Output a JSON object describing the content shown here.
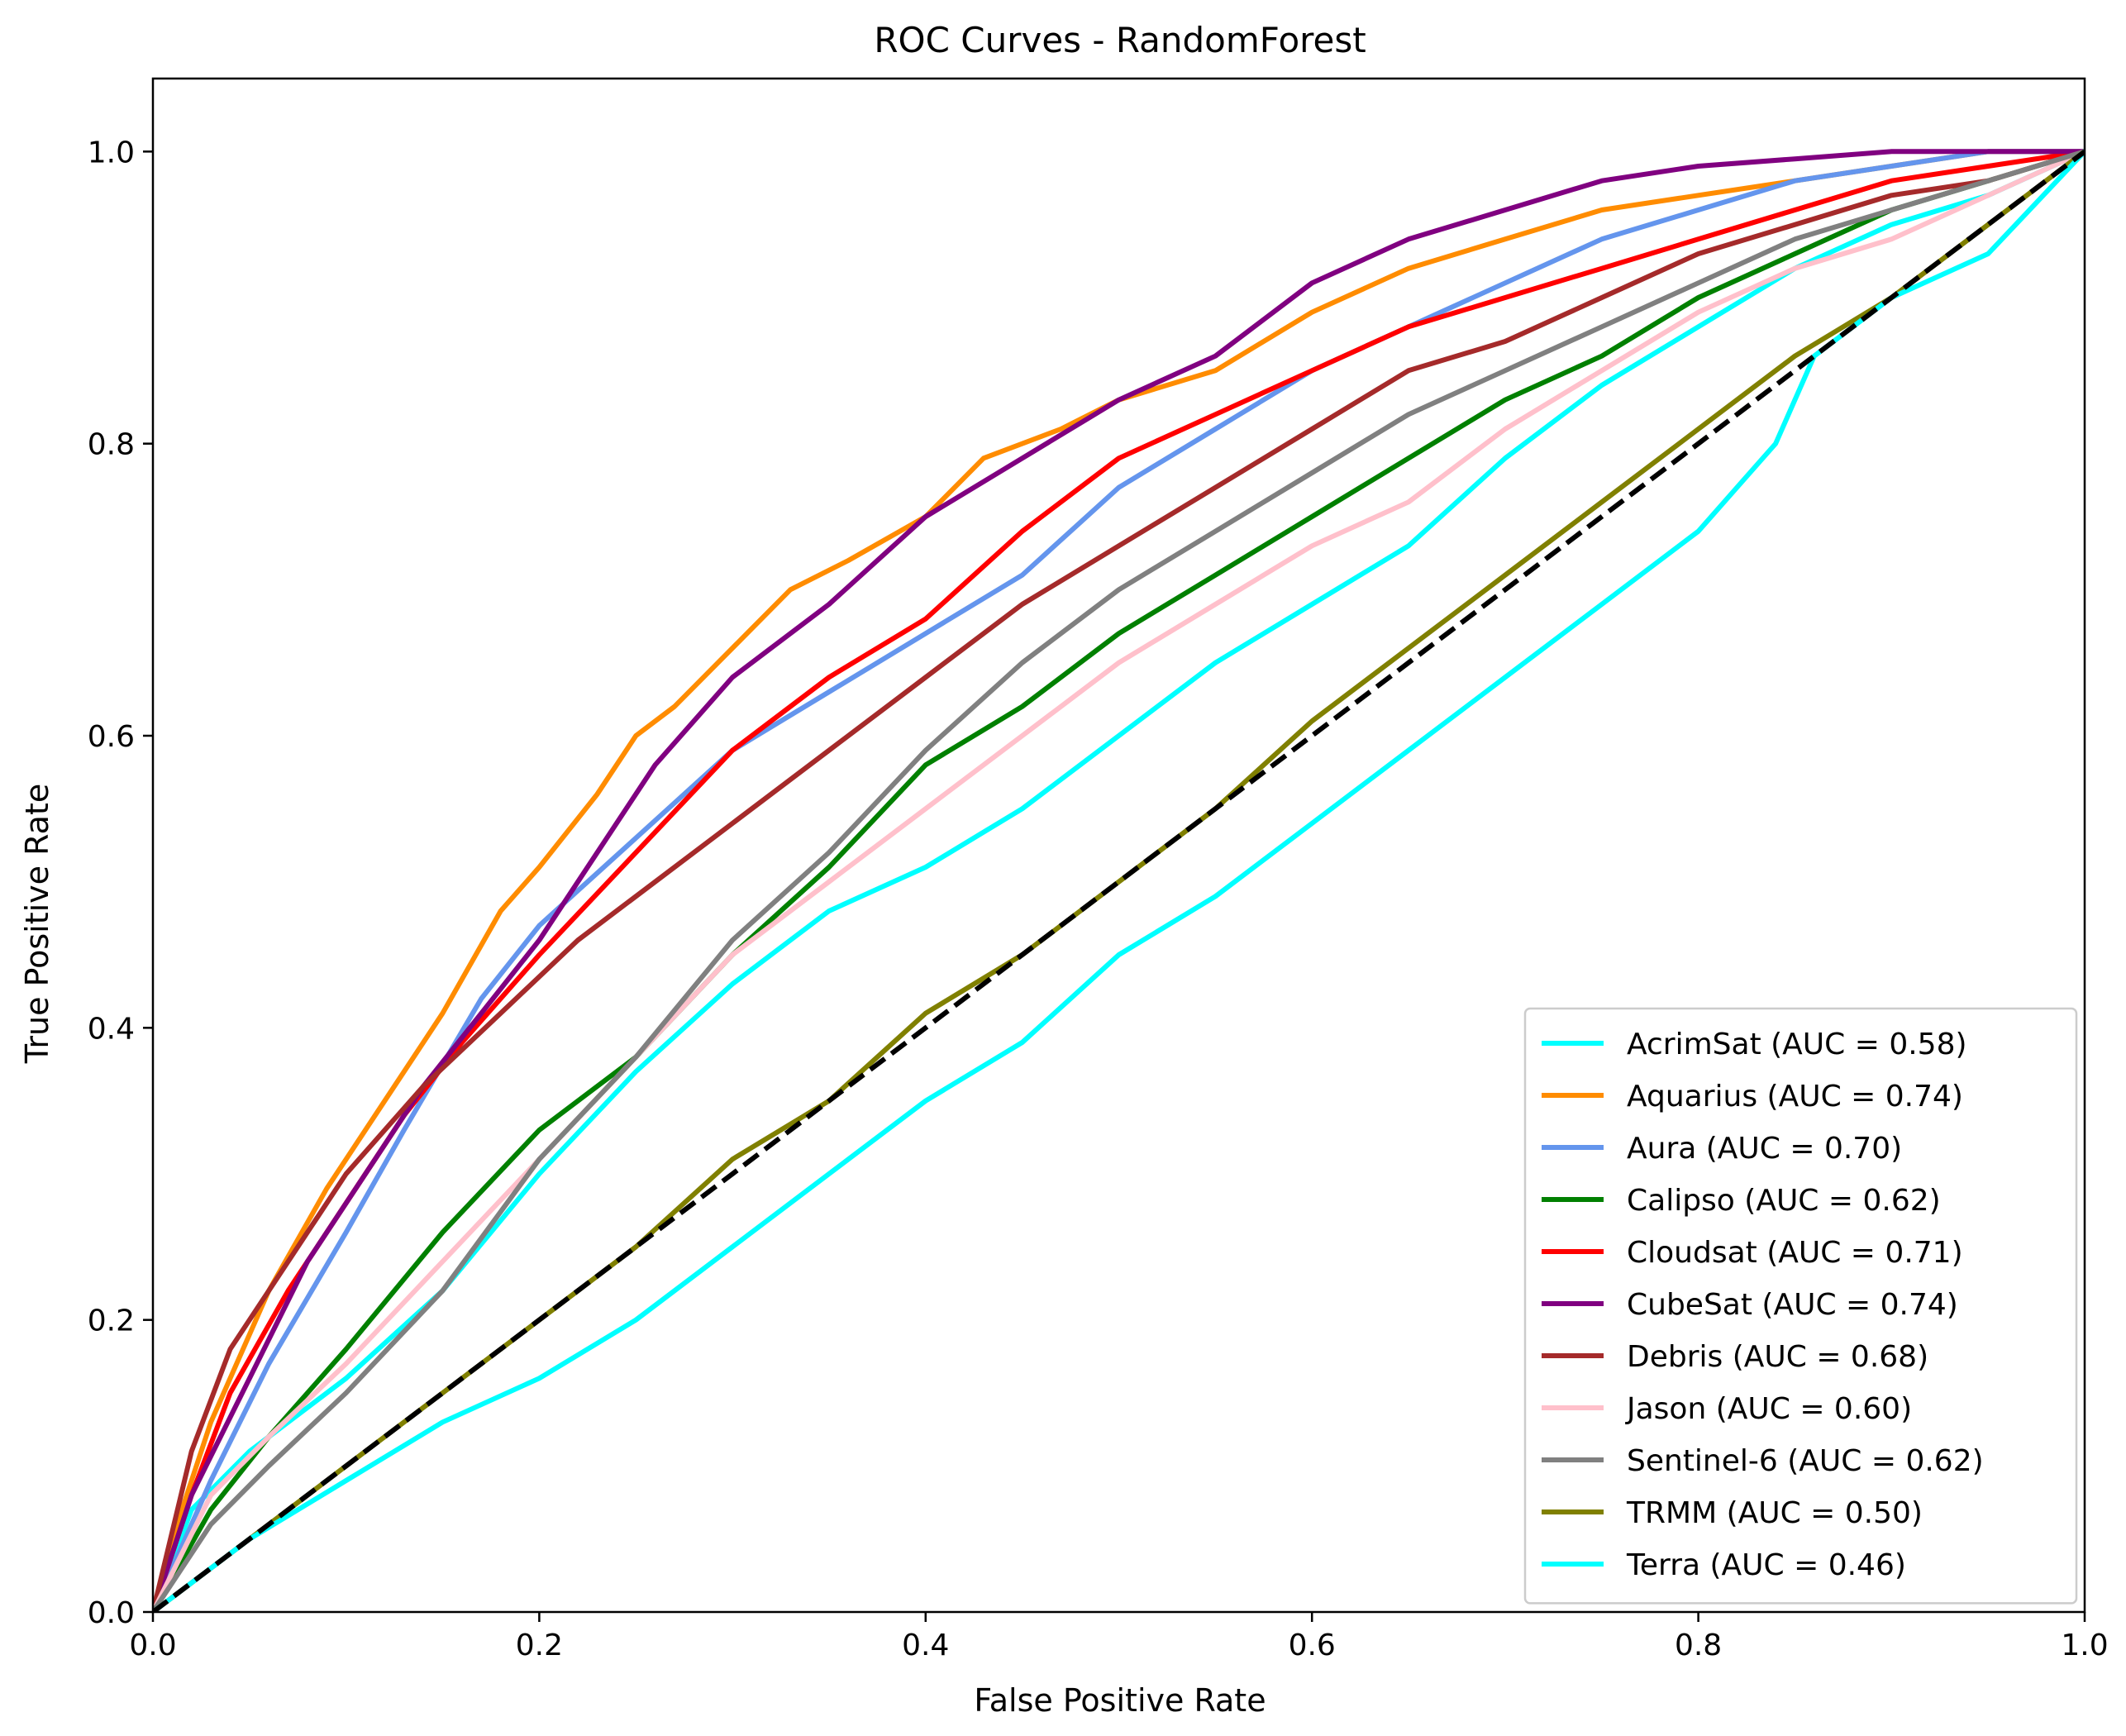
{
  "chart_data": {
    "type": "line",
    "title": "ROC Curves - RandomForest",
    "xlabel": "False Positive Rate",
    "ylabel": "True Positive Rate",
    "xlim": [
      0.0,
      1.0
    ],
    "ylim": [
      0.0,
      1.05
    ],
    "xticks": [
      "0.0",
      "0.2",
      "0.4",
      "0.6",
      "0.8",
      "1.0"
    ],
    "yticks": [
      "0.0",
      "0.2",
      "0.4",
      "0.6",
      "0.8",
      "1.0"
    ],
    "grid": false,
    "legend_position": "lower-right",
    "diagonal": {
      "x": [
        0,
        1
      ],
      "y": [
        0,
        1
      ],
      "color": "#000000",
      "style": "dashed"
    },
    "series": [
      {
        "name": "AcrimSat (AUC = 0.58)",
        "color": "#00ffff",
        "x": [
          0,
          0.02,
          0.05,
          0.1,
          0.15,
          0.2,
          0.25,
          0.3,
          0.35,
          0.4,
          0.45,
          0.5,
          0.55,
          0.6,
          0.65,
          0.7,
          0.75,
          0.8,
          0.85,
          0.9,
          0.95,
          1.0
        ],
        "y": [
          0,
          0.07,
          0.11,
          0.16,
          0.22,
          0.3,
          0.37,
          0.43,
          0.48,
          0.51,
          0.55,
          0.6,
          0.65,
          0.69,
          0.73,
          0.79,
          0.84,
          0.88,
          0.92,
          0.95,
          0.97,
          1.0
        ]
      },
      {
        "name": "Aquarius (AUC = 0.74)",
        "color": "#ff8c00",
        "x": [
          0,
          0.01,
          0.03,
          0.06,
          0.09,
          0.12,
          0.15,
          0.18,
          0.2,
          0.23,
          0.25,
          0.27,
          0.3,
          0.33,
          0.36,
          0.4,
          0.43,
          0.47,
          0.5,
          0.55,
          0.6,
          0.65,
          0.7,
          0.75,
          0.8,
          0.85,
          0.9,
          0.95,
          1.0
        ],
        "y": [
          0,
          0.05,
          0.13,
          0.22,
          0.29,
          0.35,
          0.41,
          0.48,
          0.51,
          0.56,
          0.6,
          0.62,
          0.66,
          0.7,
          0.72,
          0.75,
          0.79,
          0.81,
          0.83,
          0.85,
          0.89,
          0.92,
          0.94,
          0.96,
          0.97,
          0.98,
          0.99,
          1.0,
          1.0
        ]
      },
      {
        "name": "Aura (AUC = 0.70)",
        "color": "#6495ed",
        "x": [
          0,
          0.03,
          0.06,
          0.1,
          0.13,
          0.17,
          0.2,
          0.25,
          0.3,
          0.35,
          0.4,
          0.45,
          0.5,
          0.55,
          0.6,
          0.65,
          0.7,
          0.75,
          0.8,
          0.85,
          0.9,
          0.95,
          1.0
        ],
        "y": [
          0,
          0.09,
          0.17,
          0.26,
          0.33,
          0.42,
          0.47,
          0.53,
          0.59,
          0.63,
          0.67,
          0.71,
          0.77,
          0.81,
          0.85,
          0.88,
          0.91,
          0.94,
          0.96,
          0.98,
          0.99,
          1.0,
          1.0
        ]
      },
      {
        "name": "Calipso (AUC = 0.62)",
        "color": "#008000",
        "x": [
          0,
          0.03,
          0.06,
          0.1,
          0.15,
          0.2,
          0.25,
          0.3,
          0.35,
          0.4,
          0.45,
          0.5,
          0.55,
          0.6,
          0.65,
          0.7,
          0.75,
          0.8,
          0.85,
          0.9,
          0.95,
          1.0
        ],
        "y": [
          0,
          0.07,
          0.12,
          0.18,
          0.26,
          0.33,
          0.38,
          0.45,
          0.51,
          0.58,
          0.62,
          0.67,
          0.71,
          0.75,
          0.79,
          0.83,
          0.86,
          0.9,
          0.93,
          0.96,
          0.98,
          1.0
        ]
      },
      {
        "name": "Cloudsat (AUC = 0.71)",
        "color": "#ff0000",
        "x": [
          0,
          0.02,
          0.04,
          0.07,
          0.1,
          0.13,
          0.16,
          0.2,
          0.25,
          0.3,
          0.35,
          0.4,
          0.45,
          0.5,
          0.55,
          0.6,
          0.65,
          0.7,
          0.75,
          0.8,
          0.85,
          0.9,
          0.95,
          1.0
        ],
        "y": [
          0,
          0.08,
          0.15,
          0.22,
          0.28,
          0.34,
          0.39,
          0.45,
          0.52,
          0.59,
          0.64,
          0.68,
          0.74,
          0.79,
          0.82,
          0.85,
          0.88,
          0.9,
          0.92,
          0.94,
          0.96,
          0.98,
          0.99,
          1.0
        ]
      },
      {
        "name": "CubeSat (AUC = 0.74)",
        "color": "#800080",
        "x": [
          0,
          0.02,
          0.05,
          0.08,
          0.11,
          0.14,
          0.17,
          0.2,
          0.23,
          0.26,
          0.3,
          0.35,
          0.4,
          0.45,
          0.5,
          0.55,
          0.6,
          0.65,
          0.7,
          0.75,
          0.8,
          0.85,
          0.9,
          0.95,
          1.0
        ],
        "y": [
          0,
          0.08,
          0.16,
          0.24,
          0.3,
          0.36,
          0.41,
          0.46,
          0.52,
          0.58,
          0.64,
          0.69,
          0.75,
          0.79,
          0.83,
          0.86,
          0.91,
          0.94,
          0.96,
          0.98,
          0.99,
          0.995,
          1.0,
          1.0,
          1.0
        ]
      },
      {
        "name": "Debris (AUC = 0.68)",
        "color": "#a52a2a",
        "x": [
          0,
          0.02,
          0.04,
          0.07,
          0.1,
          0.14,
          0.18,
          0.22,
          0.26,
          0.3,
          0.35,
          0.4,
          0.45,
          0.5,
          0.55,
          0.6,
          0.65,
          0.7,
          0.75,
          0.8,
          0.85,
          0.9,
          0.95,
          1.0
        ],
        "y": [
          0,
          0.11,
          0.18,
          0.24,
          0.3,
          0.36,
          0.41,
          0.46,
          0.5,
          0.54,
          0.59,
          0.64,
          0.69,
          0.73,
          0.77,
          0.81,
          0.85,
          0.87,
          0.9,
          0.93,
          0.95,
          0.97,
          0.98,
          1.0
        ]
      },
      {
        "name": "Jason (AUC = 0.60)",
        "color": "#ffc0cb",
        "x": [
          0,
          0.03,
          0.06,
          0.1,
          0.15,
          0.2,
          0.25,
          0.3,
          0.35,
          0.4,
          0.45,
          0.5,
          0.55,
          0.6,
          0.65,
          0.7,
          0.75,
          0.8,
          0.85,
          0.9,
          0.95,
          1.0
        ],
        "y": [
          0,
          0.08,
          0.12,
          0.17,
          0.24,
          0.31,
          0.38,
          0.45,
          0.5,
          0.55,
          0.6,
          0.65,
          0.69,
          0.73,
          0.76,
          0.81,
          0.85,
          0.89,
          0.92,
          0.94,
          0.97,
          1.0
        ]
      },
      {
        "name": "Sentinel-6 (AUC = 0.62)",
        "color": "#808080",
        "x": [
          0,
          0.03,
          0.06,
          0.1,
          0.15,
          0.2,
          0.25,
          0.3,
          0.35,
          0.4,
          0.45,
          0.5,
          0.55,
          0.6,
          0.65,
          0.7,
          0.75,
          0.8,
          0.85,
          0.9,
          0.95,
          1.0
        ],
        "y": [
          0,
          0.06,
          0.1,
          0.15,
          0.22,
          0.31,
          0.38,
          0.46,
          0.52,
          0.59,
          0.65,
          0.7,
          0.74,
          0.78,
          0.82,
          0.85,
          0.88,
          0.91,
          0.94,
          0.96,
          0.98,
          1.0
        ]
      },
      {
        "name": "TRMM (AUC = 0.50)",
        "color": "#808000",
        "x": [
          0,
          0.05,
          0.1,
          0.15,
          0.2,
          0.25,
          0.3,
          0.35,
          0.4,
          0.45,
          0.5,
          0.55,
          0.6,
          0.65,
          0.7,
          0.75,
          0.8,
          0.85,
          0.9,
          0.95,
          1.0
        ],
        "y": [
          0,
          0.05,
          0.1,
          0.15,
          0.2,
          0.25,
          0.31,
          0.35,
          0.41,
          0.45,
          0.5,
          0.55,
          0.61,
          0.66,
          0.71,
          0.76,
          0.81,
          0.86,
          0.9,
          0.95,
          1.0
        ]
      },
      {
        "name": "Terra (AUC = 0.46)",
        "color": "#00ffff",
        "x": [
          0,
          0.05,
          0.1,
          0.15,
          0.2,
          0.25,
          0.3,
          0.35,
          0.4,
          0.45,
          0.5,
          0.55,
          0.6,
          0.65,
          0.7,
          0.75,
          0.8,
          0.82,
          0.84,
          0.86,
          0.88,
          0.9,
          0.95,
          1.0
        ],
        "y": [
          0,
          0.05,
          0.09,
          0.13,
          0.16,
          0.2,
          0.25,
          0.3,
          0.35,
          0.39,
          0.45,
          0.49,
          0.54,
          0.59,
          0.64,
          0.69,
          0.74,
          0.77,
          0.8,
          0.86,
          0.88,
          0.9,
          0.93,
          1.0
        ]
      }
    ]
  }
}
